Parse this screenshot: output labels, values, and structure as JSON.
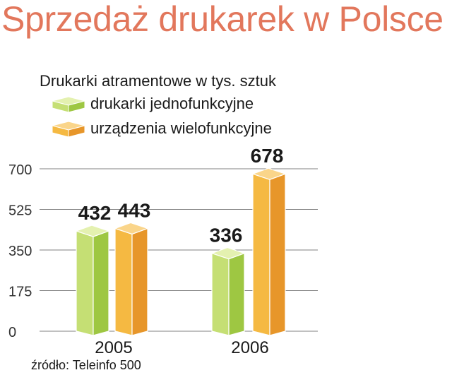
{
  "title": "Sprzedaż drukarek w Polsce",
  "subtitle": "Drukarki atramentowe w tys. sztuk",
  "source": "źródło: Teleinfo 500",
  "colors": {
    "title": "#e2775c",
    "series_1_front": "#c5df74",
    "series_1_side": "#9ec742",
    "series_1_top": "#e4f1b0",
    "series_2_front": "#f5b942",
    "series_2_side": "#e7962a",
    "series_2_top": "#fad58a",
    "grid": "#808080"
  },
  "chart_data": {
    "type": "bar",
    "title": "Sprzedaż drukarek w Polsce",
    "subtitle": "Drukarki atramentowe w tys. sztuk",
    "categories": [
      "2005",
      "2006"
    ],
    "series": [
      {
        "name": "drukarki jednofunkcyjne",
        "values": [
          432,
          336
        ]
      },
      {
        "name": "urządzenia wielofunkcyjne",
        "values": [
          443,
          678
        ]
      }
    ],
    "yticks": [
      "0",
      "175",
      "350",
      "525",
      "700"
    ],
    "ylim": [
      0,
      700
    ],
    "grid": true,
    "legend": "top-left",
    "data_labels": true
  }
}
